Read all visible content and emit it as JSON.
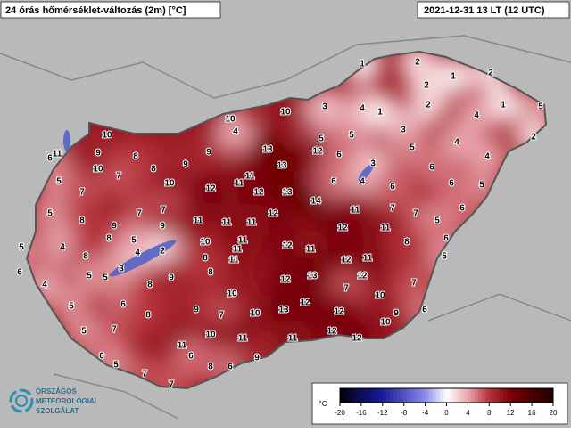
{
  "header": {
    "title": "24 órás hőmérséklet-változás (2m) [°C]",
    "timestamp": "2021-12-31 13 LT (12 UTC)"
  },
  "stations": [
    10,
    11,
    6,
    9,
    10,
    8,
    8,
    5,
    7,
    7,
    9,
    9,
    10,
    4,
    10,
    12,
    11,
    11,
    13,
    13,
    10,
    3,
    5,
    12,
    5,
    6,
    12,
    13,
    14,
    6,
    4,
    3,
    6,
    4,
    1,
    1,
    3,
    2,
    1,
    2,
    2,
    2,
    1,
    5,
    2,
    4,
    4,
    4,
    5,
    6,
    6,
    5,
    6,
    7,
    7,
    5,
    11,
    11,
    12,
    11,
    11,
    11,
    7,
    7,
    9,
    9,
    8,
    5,
    4,
    5,
    8,
    8,
    5,
    4,
    2,
    3,
    5,
    5,
    4,
    6,
    5,
    6,
    8,
    9,
    10,
    8,
    11,
    11,
    11,
    8,
    12,
    11,
    12,
    8,
    6,
    5,
    11,
    12,
    13,
    12,
    10,
    7,
    12,
    10,
    9,
    7,
    10,
    13,
    12,
    12,
    9,
    7,
    6,
    10,
    12,
    12,
    11,
    11,
    10,
    11,
    8,
    7,
    5,
    6,
    5,
    7,
    7,
    8,
    6,
    9,
    6
  ],
  "colorbar": {
    "unit": "°C",
    "range": [
      -20,
      20
    ],
    "ticks": [
      -20,
      -16,
      -12,
      -8,
      -4,
      0,
      4,
      8,
      12,
      16,
      20
    ]
  },
  "logo": {
    "line1": "ORSZÁGOS",
    "line2": "METEOROLÓGIAI",
    "line3": "SZOLGÁLAT"
  }
}
